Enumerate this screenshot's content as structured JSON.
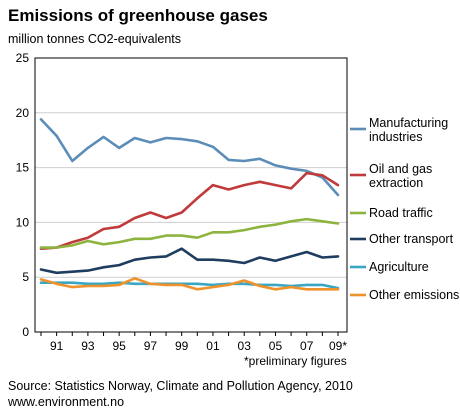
{
  "title": "Emissions of greenhouse gases",
  "unit_label": "million tonnes CO2-equivalents",
  "footnote": "*preliminary figures",
  "source": {
    "line1": "Source: Statistics Norway, Climate and Pollution Agency, 2010",
    "line2": "www.environment.no"
  },
  "chart_data": {
    "type": "line",
    "title": "Emissions of greenhouse gases",
    "ylabel": "million tonnes CO2-equivalents",
    "xlabel": "",
    "ylim": [
      0,
      25
    ],
    "yticks": [
      "0",
      "5",
      "10",
      "15",
      "20",
      "25"
    ],
    "xtick_labels": [
      "91",
      "93",
      "95",
      "97",
      "99",
      "01",
      "03",
      "05",
      "07",
      "09*"
    ],
    "x": [
      1990,
      1991,
      1992,
      1993,
      1994,
      1995,
      1996,
      1997,
      1998,
      1999,
      2000,
      2001,
      2002,
      2003,
      2004,
      2005,
      2006,
      2007,
      2008,
      2009
    ],
    "grid": "horizontal",
    "legend_position": "right",
    "series": [
      {
        "name": "Manufacturing industries",
        "color": "#5b8db8",
        "values": [
          19.4,
          17.9,
          15.6,
          16.8,
          17.8,
          16.8,
          17.7,
          17.3,
          17.7,
          17.6,
          17.4,
          16.9,
          15.7,
          15.6,
          15.8,
          15.2,
          14.9,
          14.7,
          14.1,
          12.5
        ]
      },
      {
        "name": "Oil and gas extraction",
        "color": "#c0393b",
        "values": [
          7.6,
          7.7,
          8.2,
          8.6,
          9.4,
          9.6,
          10.4,
          10.9,
          10.4,
          10.9,
          12.2,
          13.4,
          13.0,
          13.4,
          13.7,
          13.4,
          13.1,
          14.5,
          14.3,
          13.4
        ]
      },
      {
        "name": "Road traffic",
        "color": "#8db43e",
        "values": [
          7.7,
          7.7,
          7.9,
          8.3,
          8.0,
          8.2,
          8.5,
          8.5,
          8.8,
          8.8,
          8.6,
          9.1,
          9.1,
          9.3,
          9.6,
          9.8,
          10.1,
          10.3,
          10.1,
          9.9
        ]
      },
      {
        "name": "Other transport",
        "color": "#1f3d5e",
        "values": [
          5.7,
          5.4,
          5.5,
          5.6,
          5.9,
          6.1,
          6.6,
          6.8,
          6.9,
          7.6,
          6.6,
          6.6,
          6.5,
          6.3,
          6.8,
          6.5,
          6.9,
          7.3,
          6.8,
          6.9
        ]
      },
      {
        "name": "Agriculture",
        "color": "#3aa6c4",
        "values": [
          4.5,
          4.5,
          4.5,
          4.4,
          4.4,
          4.5,
          4.4,
          4.4,
          4.4,
          4.4,
          4.4,
          4.3,
          4.4,
          4.4,
          4.3,
          4.3,
          4.2,
          4.3,
          4.3,
          4.0
        ]
      },
      {
        "name": "Other emissions",
        "color": "#f0922c",
        "values": [
          4.8,
          4.4,
          4.1,
          4.2,
          4.2,
          4.3,
          4.9,
          4.4,
          4.3,
          4.3,
          3.9,
          4.1,
          4.3,
          4.7,
          4.2,
          3.9,
          4.1,
          3.9,
          3.9,
          3.9
        ]
      }
    ]
  }
}
